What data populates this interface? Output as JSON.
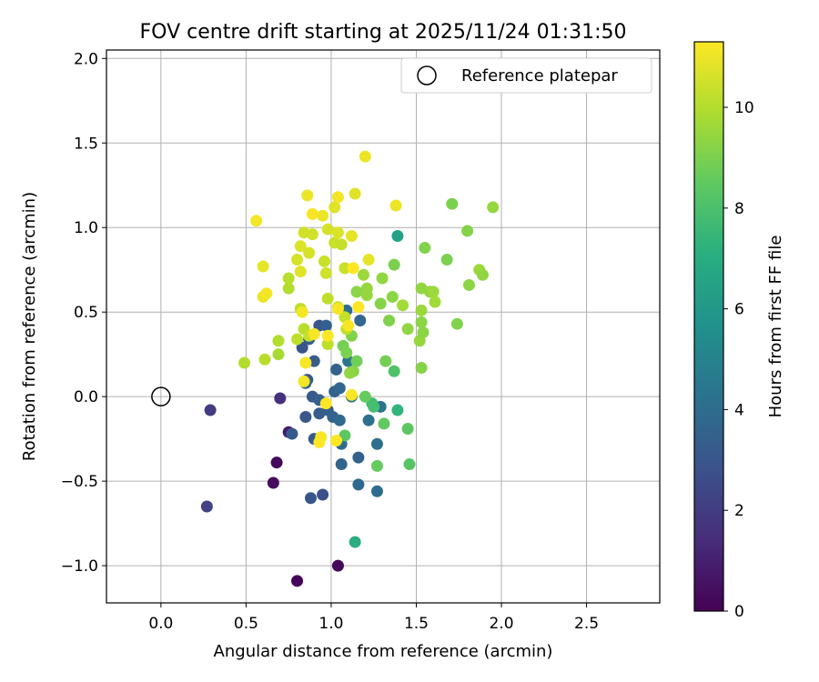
{
  "chart_data": {
    "type": "scatter",
    "title": "FOV centre drift starting at 2025/11/24 01:31:50",
    "xlabel": "Angular distance from reference (arcmin)",
    "ylabel": "Rotation from reference (arcmin)",
    "xlim": [
      -0.32,
      2.93
    ],
    "ylim": [
      -1.22,
      2.05
    ],
    "xticks": [
      0.0,
      0.5,
      1.0,
      1.5,
      2.0,
      2.5
    ],
    "xtick_labels": [
      "0.0",
      "0.5",
      "1.0",
      "1.5",
      "2.0",
      "2.5"
    ],
    "yticks": [
      -1.0,
      -0.5,
      0.0,
      0.5,
      1.0,
      1.5,
      2.0
    ],
    "ytick_labels": [
      "−1.0",
      "−0.5",
      "0.0",
      "0.5",
      "1.0",
      "1.5",
      "2.0"
    ],
    "grid": true,
    "legend": {
      "position": "upper right",
      "entries": [
        "Reference platepar"
      ]
    },
    "reference_point": {
      "x": 0.0,
      "y": 0.0,
      "marker": "hollow-circle"
    },
    "colorbar": {
      "label": "Hours from first FF file",
      "colormap": "viridis",
      "min": 0,
      "max": 11.3,
      "ticks": [
        0,
        2,
        4,
        6,
        8,
        10
      ],
      "tick_labels": [
        "0",
        "2",
        "4",
        "6",
        "8",
        "10"
      ]
    },
    "points": [
      {
        "x": 0.8,
        "y": -1.09,
        "hours": 0.1
      },
      {
        "x": 1.04,
        "y": -1.0,
        "hours": 0.2
      },
      {
        "x": 0.68,
        "y": -0.39,
        "hours": 0.3
      },
      {
        "x": 0.66,
        "y": -0.51,
        "hours": 0.4
      },
      {
        "x": 0.75,
        "y": -0.21,
        "hours": 0.8
      },
      {
        "x": 0.7,
        "y": -0.01,
        "hours": 1.6
      },
      {
        "x": 0.29,
        "y": -0.08,
        "hours": 2.0
      },
      {
        "x": 0.27,
        "y": -0.65,
        "hours": 2.2
      },
      {
        "x": 0.95,
        "y": -0.58,
        "hours": 2.8
      },
      {
        "x": 0.88,
        "y": -0.6,
        "hours": 3.0
      },
      {
        "x": 0.77,
        "y": -0.22,
        "hours": 3.2
      },
      {
        "x": 0.9,
        "y": -0.25,
        "hours": 3.2
      },
      {
        "x": 0.85,
        "y": -0.12,
        "hours": 3.1
      },
      {
        "x": 0.93,
        "y": -0.1,
        "hours": 3.3
      },
      {
        "x": 0.98,
        "y": -0.08,
        "hours": 3.4
      },
      {
        "x": 0.89,
        "y": 0.0,
        "hours": 3.2
      },
      {
        "x": 0.93,
        "y": -0.02,
        "hours": 3.4
      },
      {
        "x": 1.02,
        "y": 0.03,
        "hours": 3.5
      },
      {
        "x": 1.05,
        "y": 0.05,
        "hours": 3.7
      },
      {
        "x": 1.03,
        "y": 0.16,
        "hours": 3.5
      },
      {
        "x": 0.86,
        "y": 0.1,
        "hours": 3.2
      },
      {
        "x": 0.85,
        "y": 0.08,
        "hours": 3.4
      },
      {
        "x": 0.9,
        "y": 0.21,
        "hours": 3.3
      },
      {
        "x": 0.83,
        "y": 0.29,
        "hours": 3.0
      },
      {
        "x": 0.87,
        "y": 0.34,
        "hours": 3.3
      },
      {
        "x": 0.93,
        "y": 0.42,
        "hours": 3.1
      },
      {
        "x": 0.97,
        "y": 0.42,
        "hours": 3.4
      },
      {
        "x": 1.01,
        "y": -0.12,
        "hours": 3.6
      },
      {
        "x": 1.05,
        "y": -0.14,
        "hours": 3.8
      },
      {
        "x": 1.06,
        "y": -0.28,
        "hours": 3.9
      },
      {
        "x": 1.06,
        "y": -0.4,
        "hours": 3.6
      },
      {
        "x": 1.16,
        "y": -0.36,
        "hours": 3.5
      },
      {
        "x": 1.16,
        "y": -0.52,
        "hours": 3.8
      },
      {
        "x": 1.27,
        "y": -0.56,
        "hours": 4.0
      },
      {
        "x": 1.27,
        "y": -0.28,
        "hours": 4.1
      },
      {
        "x": 1.22,
        "y": -0.14,
        "hours": 4.2
      },
      {
        "x": 1.29,
        "y": -0.06,
        "hours": 4.3
      },
      {
        "x": 1.17,
        "y": 0.45,
        "hours": 3.7
      },
      {
        "x": 1.09,
        "y": 0.51,
        "hours": 4.0
      },
      {
        "x": 1.1,
        "y": 0.21,
        "hours": 4.5
      },
      {
        "x": 1.12,
        "y": 0.0,
        "hours": 4.4
      },
      {
        "x": 1.39,
        "y": 0.95,
        "hours": 6.5
      },
      {
        "x": 1.14,
        "y": -0.86,
        "hours": 7.0
      },
      {
        "x": 1.39,
        "y": -0.08,
        "hours": 7.4
      },
      {
        "x": 1.24,
        "y": -0.04,
        "hours": 7.8
      },
      {
        "x": 1.25,
        "y": -0.06,
        "hours": 7.9
      },
      {
        "x": 1.37,
        "y": 0.15,
        "hours": 8.1
      },
      {
        "x": 1.46,
        "y": -0.4,
        "hours": 8.3
      },
      {
        "x": 1.45,
        "y": -0.19,
        "hours": 8.4
      },
      {
        "x": 1.31,
        "y": -0.16,
        "hours": 8.5
      },
      {
        "x": 1.27,
        "y": -0.41,
        "hours": 8.6
      },
      {
        "x": 1.08,
        "y": -0.23,
        "hours": 8.4
      },
      {
        "x": 1.2,
        "y": 0.0,
        "hours": 8.6
      },
      {
        "x": 1.15,
        "y": 0.21,
        "hours": 8.8
      },
      {
        "x": 1.07,
        "y": 0.3,
        "hours": 8.9
      },
      {
        "x": 1.09,
        "y": 0.26,
        "hours": 9.0
      },
      {
        "x": 1.12,
        "y": 0.36,
        "hours": 9.1
      },
      {
        "x": 1.13,
        "y": 0.15,
        "hours": 9.2
      },
      {
        "x": 1.11,
        "y": 0.14,
        "hours": 9.4
      },
      {
        "x": 1.32,
        "y": 0.21,
        "hours": 8.9
      },
      {
        "x": 1.34,
        "y": 0.45,
        "hours": 9.1
      },
      {
        "x": 1.29,
        "y": 0.55,
        "hours": 9.2
      },
      {
        "x": 1.36,
        "y": 0.59,
        "hours": 9.3
      },
      {
        "x": 1.37,
        "y": 0.78,
        "hours": 9.0
      },
      {
        "x": 1.3,
        "y": 0.7,
        "hours": 9.4
      },
      {
        "x": 1.21,
        "y": 0.64,
        "hours": 9.5
      },
      {
        "x": 1.19,
        "y": 0.72,
        "hours": 9.6
      },
      {
        "x": 1.15,
        "y": 0.62,
        "hours": 9.3
      },
      {
        "x": 1.21,
        "y": 0.6,
        "hours": 9.5
      },
      {
        "x": 1.42,
        "y": 0.54,
        "hours": 9.7
      },
      {
        "x": 1.45,
        "y": 0.4,
        "hours": 9.4
      },
      {
        "x": 1.52,
        "y": 0.33,
        "hours": 9.5
      },
      {
        "x": 1.53,
        "y": 0.17,
        "hours": 9.2
      },
      {
        "x": 1.54,
        "y": 0.38,
        "hours": 9.3
      },
      {
        "x": 1.53,
        "y": 0.44,
        "hours": 9.3
      },
      {
        "x": 1.53,
        "y": 0.51,
        "hours": 9.6
      },
      {
        "x": 1.53,
        "y": 0.64,
        "hours": 9.4
      },
      {
        "x": 1.58,
        "y": 0.62,
        "hours": 9.4
      },
      {
        "x": 1.6,
        "y": 0.62,
        "hours": 9.6
      },
      {
        "x": 1.61,
        "y": 0.56,
        "hours": 9.7
      },
      {
        "x": 1.55,
        "y": 0.88,
        "hours": 9.1
      },
      {
        "x": 1.68,
        "y": 0.81,
        "hours": 9.0
      },
      {
        "x": 1.74,
        "y": 0.43,
        "hours": 9.1
      },
      {
        "x": 1.71,
        "y": 1.14,
        "hours": 9.0
      },
      {
        "x": 1.8,
        "y": 0.98,
        "hours": 9.2
      },
      {
        "x": 1.81,
        "y": 0.66,
        "hours": 9.3
      },
      {
        "x": 1.87,
        "y": 0.75,
        "hours": 9.6
      },
      {
        "x": 1.89,
        "y": 0.72,
        "hours": 9.4
      },
      {
        "x": 1.95,
        "y": 1.12,
        "hours": 9.5
      },
      {
        "x": 0.49,
        "y": 0.2,
        "hours": 10.0
      },
      {
        "x": 0.61,
        "y": 0.22,
        "hours": 10.1
      },
      {
        "x": 0.69,
        "y": 0.25,
        "hours": 9.8
      },
      {
        "x": 0.69,
        "y": 0.33,
        "hours": 10.0
      },
      {
        "x": 0.75,
        "y": 0.64,
        "hours": 10.0
      },
      {
        "x": 0.75,
        "y": 0.7,
        "hours": 10.1
      },
      {
        "x": 0.8,
        "y": 0.34,
        "hours": 10.2
      },
      {
        "x": 0.82,
        "y": 0.52,
        "hours": 10.2
      },
      {
        "x": 0.84,
        "y": 0.4,
        "hours": 10.1
      },
      {
        "x": 0.87,
        "y": 0.36,
        "hours": 10.3
      },
      {
        "x": 0.98,
        "y": 0.31,
        "hours": 10.2
      },
      {
        "x": 0.98,
        "y": 0.58,
        "hours": 10.2
      },
      {
        "x": 1.04,
        "y": 0.53,
        "hours": 10.4
      },
      {
        "x": 1.08,
        "y": 0.47,
        "hours": 10.3
      },
      {
        "x": 1.09,
        "y": 0.4,
        "hours": 10.2
      },
      {
        "x": 1.08,
        "y": 0.76,
        "hours": 10.4
      },
      {
        "x": 1.02,
        "y": 0.91,
        "hours": 10.4
      },
      {
        "x": 1.06,
        "y": 0.9,
        "hours": 10.3
      },
      {
        "x": 0.97,
        "y": 0.73,
        "hours": 10.5
      },
      {
        "x": 0.96,
        "y": 0.8,
        "hours": 10.4
      },
      {
        "x": 0.87,
        "y": 0.85,
        "hours": 10.6
      },
      {
        "x": 0.84,
        "y": 0.97,
        "hours": 10.5
      },
      {
        "x": 0.89,
        "y": 0.96,
        "hours": 10.5
      },
      {
        "x": 0.82,
        "y": 0.89,
        "hours": 10.7
      },
      {
        "x": 0.8,
        "y": 0.81,
        "hours": 10.6
      },
      {
        "x": 0.82,
        "y": 0.74,
        "hours": 10.8
      },
      {
        "x": 0.98,
        "y": 0.99,
        "hours": 10.6
      },
      {
        "x": 1.02,
        "y": 1.12,
        "hours": 10.8
      },
      {
        "x": 1.04,
        "y": 0.97,
        "hours": 10.7
      },
      {
        "x": 1.12,
        "y": 0.95,
        "hours": 10.9
      },
      {
        "x": 1.14,
        "y": 1.2,
        "hours": 10.8
      },
      {
        "x": 1.22,
        "y": 0.81,
        "hours": 10.9
      },
      {
        "x": 1.2,
        "y": 1.42,
        "hours": 11.0
      },
      {
        "x": 1.38,
        "y": 1.13,
        "hours": 11.0
      },
      {
        "x": 1.04,
        "y": 1.18,
        "hours": 11.1
      },
      {
        "x": 0.86,
        "y": 1.19,
        "hours": 11.0
      },
      {
        "x": 0.89,
        "y": 1.08,
        "hours": 11.2
      },
      {
        "x": 0.95,
        "y": 1.07,
        "hours": 11.0
      },
      {
        "x": 0.56,
        "y": 1.04,
        "hours": 11.1
      },
      {
        "x": 0.6,
        "y": 0.77,
        "hours": 10.9
      },
      {
        "x": 0.6,
        "y": 0.59,
        "hours": 11.0
      },
      {
        "x": 0.62,
        "y": 0.61,
        "hours": 11.1
      },
      {
        "x": 0.83,
        "y": 0.5,
        "hours": 11.1
      },
      {
        "x": 0.85,
        "y": 0.2,
        "hours": 11.2
      },
      {
        "x": 0.84,
        "y": 0.09,
        "hours": 11.1
      },
      {
        "x": 0.9,
        "y": 0.37,
        "hours": 11.2
      },
      {
        "x": 0.98,
        "y": 0.36,
        "hours": 11.3
      },
      {
        "x": 0.97,
        "y": -0.04,
        "hours": 11.3
      },
      {
        "x": 1.04,
        "y": 0.52,
        "hours": 11.2
      },
      {
        "x": 1.1,
        "y": 0.42,
        "hours": 11.2
      },
      {
        "x": 1.13,
        "y": 0.76,
        "hours": 11.3
      },
      {
        "x": 1.16,
        "y": 0.53,
        "hours": 11.3
      },
      {
        "x": 1.12,
        "y": 0.01,
        "hours": 11.2
      },
      {
        "x": 0.94,
        "y": -0.24,
        "hours": 11.2
      },
      {
        "x": 0.93,
        "y": -0.27,
        "hours": 11.3
      },
      {
        "x": 1.03,
        "y": -0.26,
        "hours": 11.3
      }
    ]
  }
}
